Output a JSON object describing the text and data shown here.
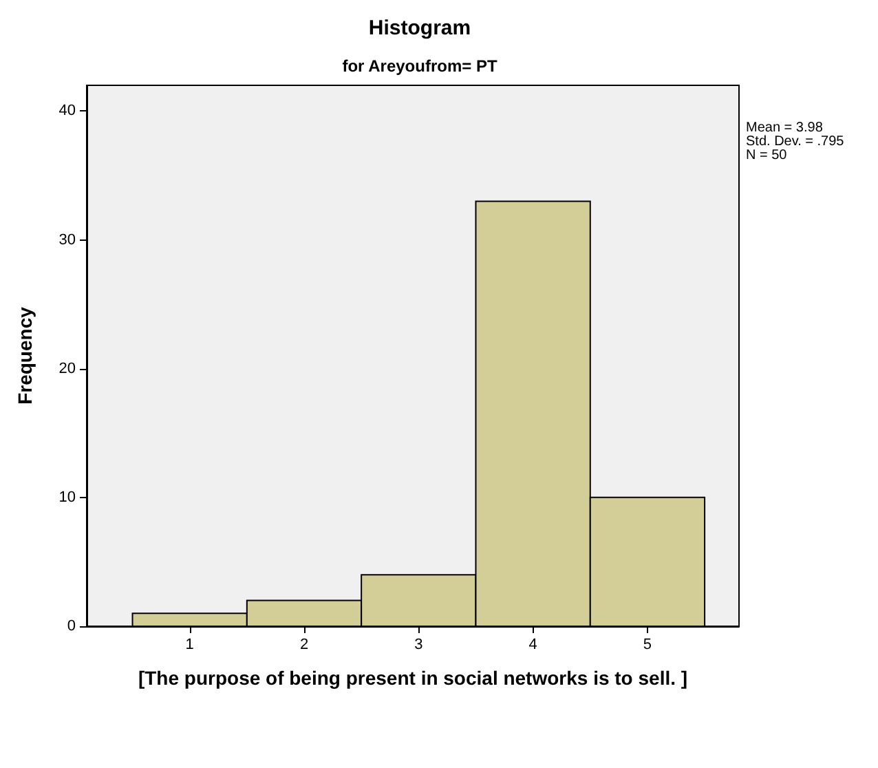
{
  "chart_data": {
    "type": "histogram",
    "title": "Histogram",
    "subtitle": "for Areyoufrom= PT",
    "xlabel": "[The purpose of being present in social networks is to sell. ]",
    "ylabel": "Frequency",
    "bins": [
      0.5,
      1.5,
      2.5,
      3.5,
      4.5,
      5.5
    ],
    "values": [
      1,
      2,
      4,
      33,
      10
    ],
    "color": "#d3ce97",
    "xlim": [
      0.1,
      5.8
    ],
    "xticks": [
      1,
      2,
      3,
      4,
      5
    ],
    "ylim": [
      0,
      42
    ],
    "yticks": [
      0,
      10,
      20,
      30,
      40
    ],
    "annotations": [
      "Mean = 3.98",
      "Std. Dev. = .795",
      "N = 50"
    ],
    "grid": false
  }
}
